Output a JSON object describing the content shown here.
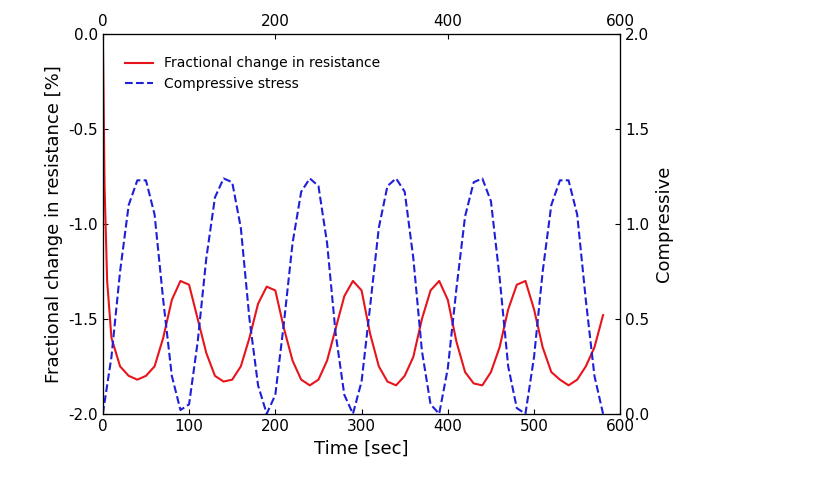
{
  "chart_data": {
    "type": "line",
    "xlabel": "Time [sec]",
    "ylabel": "Fractional change in resistance [%]",
    "y2label": "Compressive",
    "xlim": [
      0,
      600
    ],
    "xticks": [
      0,
      100,
      200,
      300,
      400,
      500,
      600
    ],
    "x2lim": [
      0,
      600
    ],
    "x2ticks": [
      0,
      200,
      400,
      600
    ],
    "ylim": [
      -2.0,
      0.0
    ],
    "yticks": [
      -2.0,
      -1.5,
      -1.0,
      -0.5,
      0.0
    ],
    "y2lim": [
      0.0,
      2.0
    ],
    "y2ticks": [
      0.0,
      0.5,
      1.0,
      1.5,
      2.0
    ],
    "legend": "upper left",
    "grid": false,
    "series": [
      {
        "name": "Fractional change in resistance",
        "color": "#e8141c",
        "line_style": "solid",
        "axis": "y",
        "x": [
          0,
          2,
          5,
          10,
          20,
          30,
          40,
          50,
          60,
          70,
          80,
          90,
          100,
          110,
          120,
          130,
          140,
          150,
          160,
          170,
          180,
          190,
          200,
          210,
          220,
          230,
          240,
          250,
          260,
          270,
          280,
          290,
          300,
          310,
          320,
          330,
          340,
          350,
          360,
          370,
          380,
          390,
          400,
          410,
          420,
          430,
          440,
          450,
          460,
          470,
          480,
          490,
          500,
          510,
          520,
          530,
          540,
          550,
          560,
          570,
          580
        ],
        "values": [
          0.0,
          -0.8,
          -1.3,
          -1.6,
          -1.75,
          -1.8,
          -1.82,
          -1.8,
          -1.75,
          -1.6,
          -1.4,
          -1.3,
          -1.32,
          -1.5,
          -1.68,
          -1.8,
          -1.83,
          -1.82,
          -1.75,
          -1.6,
          -1.42,
          -1.33,
          -1.35,
          -1.55,
          -1.72,
          -1.82,
          -1.85,
          -1.82,
          -1.72,
          -1.55,
          -1.38,
          -1.3,
          -1.35,
          -1.58,
          -1.75,
          -1.83,
          -1.85,
          -1.8,
          -1.7,
          -1.5,
          -1.35,
          -1.3,
          -1.4,
          -1.62,
          -1.78,
          -1.84,
          -1.85,
          -1.78,
          -1.65,
          -1.45,
          -1.32,
          -1.3,
          -1.45,
          -1.65,
          -1.78,
          -1.82,
          -1.85,
          -1.82,
          -1.75,
          -1.65,
          -1.48
        ]
      },
      {
        "name": "Compressive stress",
        "color": "#1f1fd8",
        "line_style": "dashed",
        "axis": "y2",
        "x": [
          0,
          10,
          20,
          30,
          40,
          50,
          60,
          70,
          80,
          90,
          100,
          110,
          120,
          130,
          140,
          150,
          160,
          170,
          180,
          190,
          200,
          210,
          220,
          230,
          240,
          250,
          260,
          270,
          280,
          290,
          300,
          310,
          320,
          330,
          340,
          350,
          360,
          370,
          380,
          390,
          400,
          410,
          420,
          430,
          440,
          450,
          460,
          470,
          480,
          490,
          500,
          510,
          520,
          530,
          540,
          550,
          560,
          570,
          580
        ],
        "values": [
          0.0,
          0.3,
          0.75,
          1.1,
          1.23,
          1.23,
          1.05,
          0.6,
          0.2,
          0.02,
          0.05,
          0.38,
          0.82,
          1.14,
          1.24,
          1.22,
          0.98,
          0.5,
          0.15,
          0.0,
          0.1,
          0.48,
          0.9,
          1.17,
          1.24,
          1.2,
          0.9,
          0.42,
          0.1,
          0.0,
          0.17,
          0.57,
          0.98,
          1.2,
          1.24,
          1.17,
          0.82,
          0.33,
          0.05,
          0.0,
          0.24,
          0.66,
          1.04,
          1.22,
          1.24,
          1.12,
          0.72,
          0.25,
          0.03,
          0.0,
          0.3,
          0.75,
          1.1,
          1.23,
          1.23,
          1.05,
          0.6,
          0.2,
          0.0
        ]
      }
    ]
  }
}
